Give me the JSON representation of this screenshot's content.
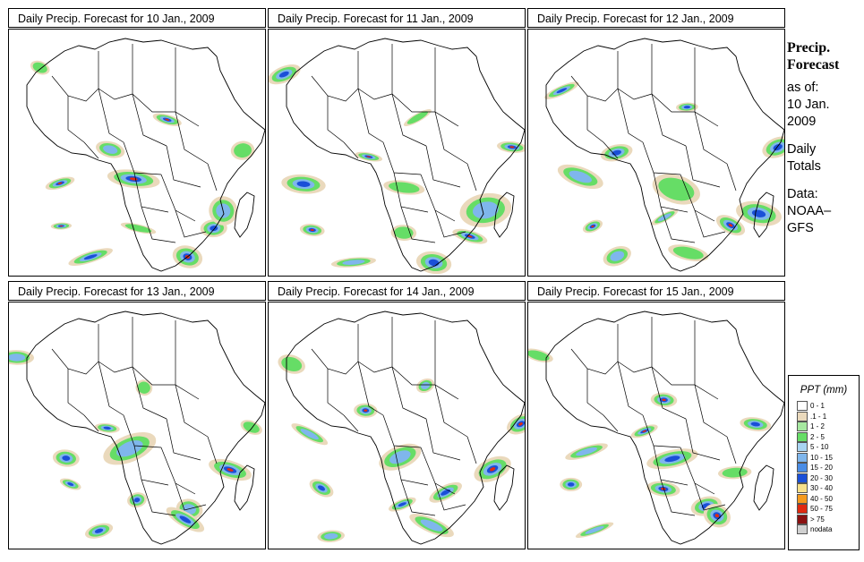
{
  "panels": [
    {
      "title": "Daily Precip. Forecast for  10 Jan., 2009",
      "seed": 11
    },
    {
      "title": "Daily Precip. Forecast for  11 Jan., 2009",
      "seed": 23
    },
    {
      "title": "Daily Precip. Forecast for  12 Jan., 2009",
      "seed": 37
    },
    {
      "title": "Daily Precip. Forecast for  13 Jan., 2009",
      "seed": 41
    },
    {
      "title": "Daily Precip. Forecast for  14 Jan., 2009",
      "seed": 53
    },
    {
      "title": "Daily Precip. Forecast for  15 Jan., 2009",
      "seed": 67
    }
  ],
  "side": {
    "heading1": "Precip.",
    "heading2": "Forecast",
    "asof1": "as of:",
    "asof2": "10 Jan.",
    "asof3": "2009",
    "daily1": "Daily",
    "daily2": "Totals",
    "data1": "Data:",
    "data2": "NOAA–",
    "data3": "GFS"
  },
  "legend": {
    "title": "PPT (mm)",
    "classes": [
      {
        "label": "0 - 1",
        "color": "#ffffff"
      },
      {
        "label": ".1 - 1",
        "color": "#ead9bc"
      },
      {
        "label": "1 - 2",
        "color": "#a6e8a0"
      },
      {
        "label": "2 - 5",
        "color": "#66dd66"
      },
      {
        "label": "5 - 10",
        "color": "#a8d4f2"
      },
      {
        "label": "10 - 15",
        "color": "#7fb6ec"
      },
      {
        "label": "15 - 20",
        "color": "#4a8de6"
      },
      {
        "label": "20 - 30",
        "color": "#1a4fd8"
      },
      {
        "label": "30 - 40",
        "color": "#f7e08a"
      },
      {
        "label": "40 - 50",
        "color": "#f59a1e"
      },
      {
        "label": "50 - 75",
        "color": "#e02a10"
      },
      {
        "label": "> 75",
        "color": "#8a1010"
      },
      {
        "label": "nodata",
        "color": "#d0d0d0"
      }
    ]
  }
}
